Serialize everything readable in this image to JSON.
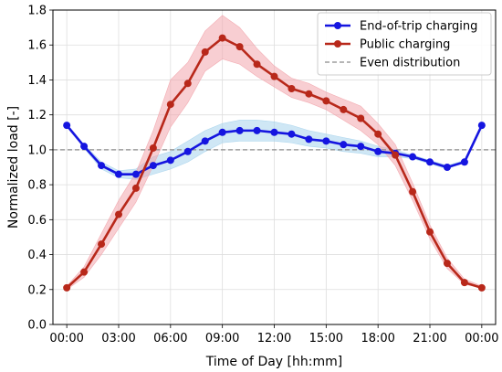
{
  "chart_data": {
    "type": "line",
    "xlabel": "Time of Day [hh:mm]",
    "ylabel": "Normalized load [-]",
    "xlim": [
      -0.8,
      24.8
    ],
    "ylim": [
      0.0,
      1.8
    ],
    "x_ticks": [
      0,
      3,
      6,
      9,
      12,
      15,
      18,
      21,
      24
    ],
    "x_tick_labels": [
      "00:00",
      "03:00",
      "06:00",
      "09:00",
      "12:00",
      "15:00",
      "18:00",
      "21:00",
      "00:00"
    ],
    "y_ticks": [
      0.0,
      0.2,
      0.4,
      0.6,
      0.8,
      1.0,
      1.2,
      1.4,
      1.6,
      1.8
    ],
    "y_tick_labels": [
      "0.0",
      "0.2",
      "0.4",
      "0.6",
      "0.8",
      "1.0",
      "1.2",
      "1.4",
      "1.6",
      "1.8"
    ],
    "grid": true,
    "legend_position": "top-right",
    "x": [
      0,
      1,
      2,
      3,
      4,
      5,
      6,
      7,
      8,
      9,
      10,
      11,
      12,
      13,
      14,
      15,
      16,
      17,
      18,
      19,
      20,
      21,
      22,
      23,
      24
    ],
    "series": [
      {
        "name": "End-of-trip charging",
        "color": "#1515e0",
        "band_color": "#a8d4ec",
        "values": [
          1.14,
          1.02,
          0.91,
          0.86,
          0.86,
          0.91,
          0.94,
          0.99,
          1.05,
          1.1,
          1.11,
          1.11,
          1.1,
          1.09,
          1.06,
          1.05,
          1.03,
          1.02,
          0.99,
          0.98,
          0.96,
          0.93,
          0.9,
          0.93,
          1.14
        ],
        "band_lower": [
          1.14,
          1.01,
          0.89,
          0.84,
          0.83,
          0.86,
          0.89,
          0.93,
          0.99,
          1.04,
          1.05,
          1.05,
          1.05,
          1.04,
          1.02,
          1.01,
          0.99,
          0.98,
          0.96,
          0.96,
          0.95,
          0.92,
          0.89,
          0.93,
          1.14
        ],
        "band_upper": [
          1.14,
          1.03,
          0.93,
          0.88,
          0.89,
          0.96,
          0.99,
          1.05,
          1.11,
          1.15,
          1.17,
          1.17,
          1.16,
          1.14,
          1.11,
          1.09,
          1.07,
          1.05,
          1.02,
          1.0,
          0.97,
          0.94,
          0.91,
          0.94,
          1.14
        ]
      },
      {
        "name": "Public charging",
        "color": "#b8281a",
        "band_color": "#f2a6ad",
        "values": [
          0.21,
          0.3,
          0.46,
          0.63,
          0.78,
          1.01,
          1.26,
          1.38,
          1.56,
          1.64,
          1.59,
          1.49,
          1.42,
          1.35,
          1.32,
          1.28,
          1.23,
          1.18,
          1.09,
          0.97,
          0.76,
          0.53,
          0.35,
          0.24,
          0.21
        ],
        "band_lower": [
          0.2,
          0.27,
          0.4,
          0.55,
          0.7,
          0.91,
          1.13,
          1.27,
          1.45,
          1.52,
          1.49,
          1.42,
          1.36,
          1.3,
          1.27,
          1.23,
          1.17,
          1.11,
          1.03,
          0.91,
          0.71,
          0.49,
          0.32,
          0.23,
          0.21
        ],
        "band_upper": [
          0.22,
          0.33,
          0.52,
          0.71,
          0.87,
          1.11,
          1.4,
          1.5,
          1.68,
          1.77,
          1.7,
          1.58,
          1.48,
          1.41,
          1.38,
          1.33,
          1.29,
          1.25,
          1.15,
          1.03,
          0.81,
          0.57,
          0.38,
          0.26,
          0.22
        ]
      }
    ],
    "reference_line": {
      "name": "Even distribution",
      "y": 1.0,
      "color": "#8a8a8a"
    }
  }
}
